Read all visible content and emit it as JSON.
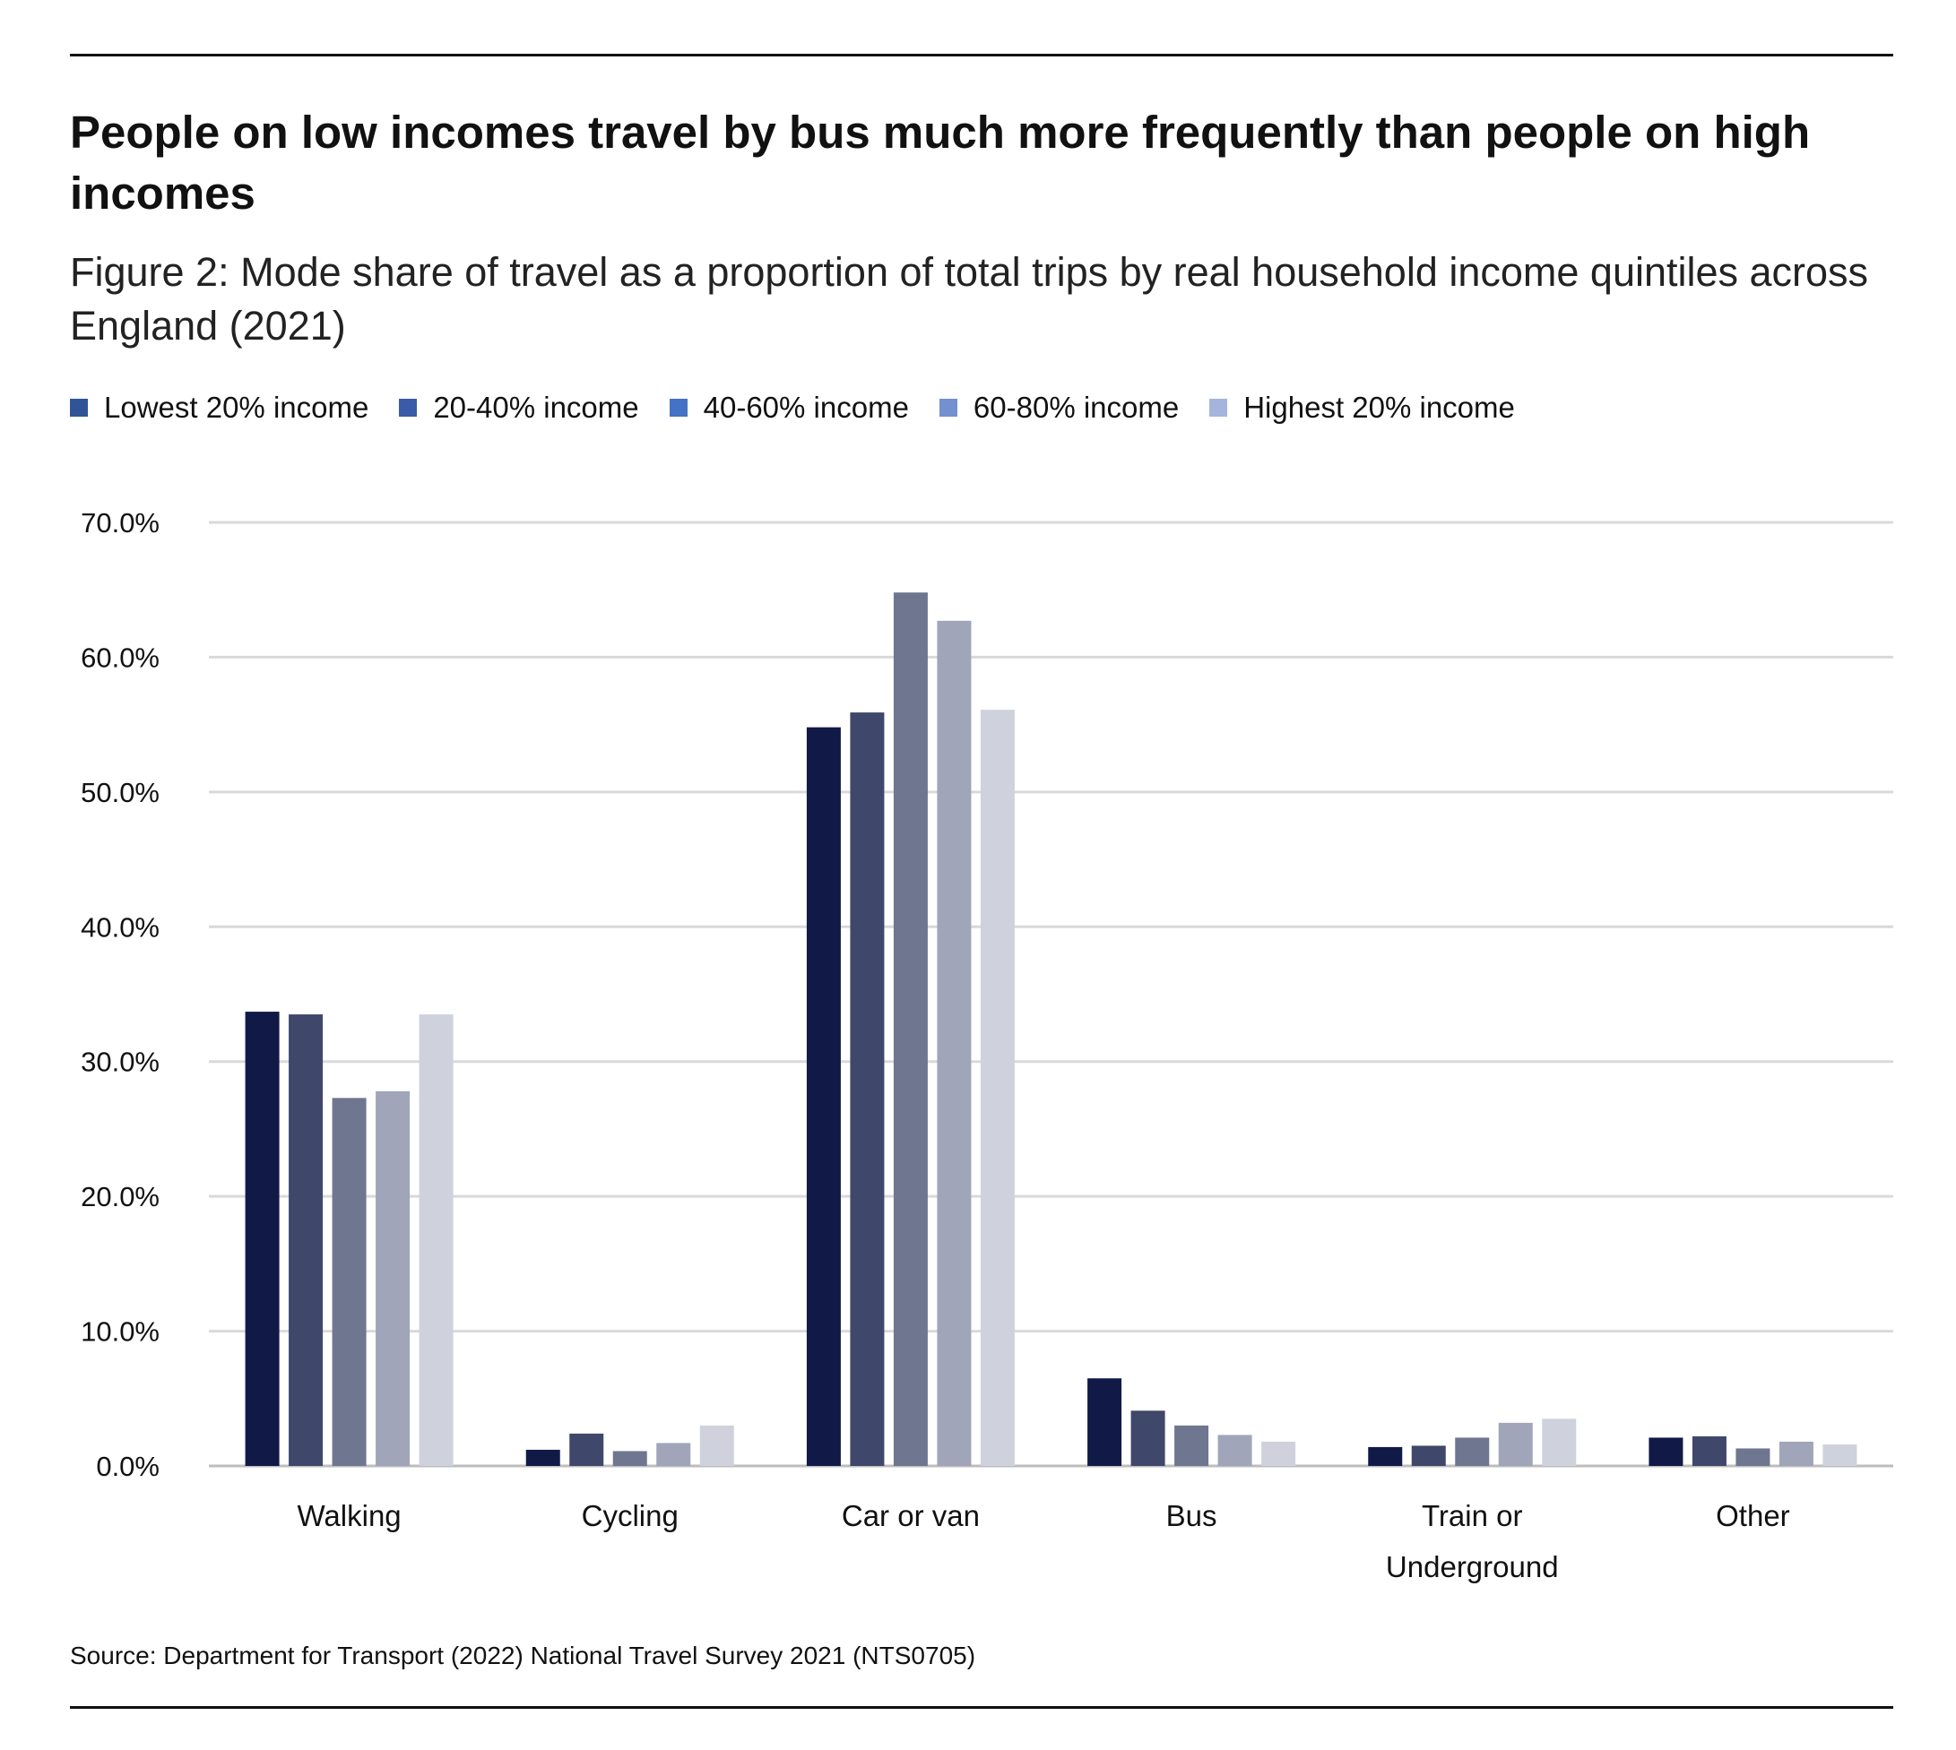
{
  "title": "People on low incomes travel by bus much more frequently than people on high incomes",
  "subtitle": "Figure 2: Mode share of travel as a proportion of total trips by real household income quintiles across England (2021)",
  "source": "Source: Department for Transport (2022) National Travel Survey 2021 (NTS0705)",
  "legend": [
    {
      "label": "Lowest 20% income",
      "color": "#2f5597"
    },
    {
      "label": "20-40% income",
      "color": "#3a5ba8"
    },
    {
      "label": "40-60% income",
      "color": "#4472c4"
    },
    {
      "label": "60-80% income",
      "color": "#7390d0"
    },
    {
      "label": "Highest 20% income",
      "color": "#a4b4dc"
    }
  ],
  "chart_data": {
    "type": "bar",
    "title": "Mode share of travel as a proportion of total trips by real household income quintiles across England (2021)",
    "xlabel": "",
    "ylabel": "",
    "ylim": [
      0,
      70
    ],
    "yticks": [
      "0.0%",
      "10.0%",
      "20.0%",
      "30.0%",
      "40.0%",
      "50.0%",
      "60.0%",
      "70.0%"
    ],
    "categories": [
      [
        "Walking"
      ],
      [
        "Cycling"
      ],
      [
        "Car or van"
      ],
      [
        "Bus"
      ],
      [
        "Train or",
        "Underground"
      ],
      [
        "Other"
      ]
    ],
    "series": [
      {
        "name": "Lowest 20% income",
        "color": "#111a47",
        "values": [
          33.7,
          1.2,
          54.8,
          6.5,
          1.4,
          2.1
        ]
      },
      {
        "name": "20-40% income",
        "color": "#3f476b",
        "values": [
          33.5,
          2.4,
          55.9,
          4.1,
          1.5,
          2.2
        ]
      },
      {
        "name": "40-60% income",
        "color": "#6f7690",
        "values": [
          27.3,
          1.1,
          64.8,
          3.0,
          2.1,
          1.3
        ]
      },
      {
        "name": "60-80% income",
        "color": "#a0a5b9",
        "values": [
          27.8,
          1.7,
          62.7,
          2.3,
          3.2,
          1.8
        ]
      },
      {
        "name": "Highest 20% income",
        "color": "#cfd1dc",
        "values": [
          33.5,
          3.0,
          56.1,
          1.8,
          3.5,
          1.6
        ]
      }
    ],
    "grid": true,
    "legend_position": "top-left"
  }
}
